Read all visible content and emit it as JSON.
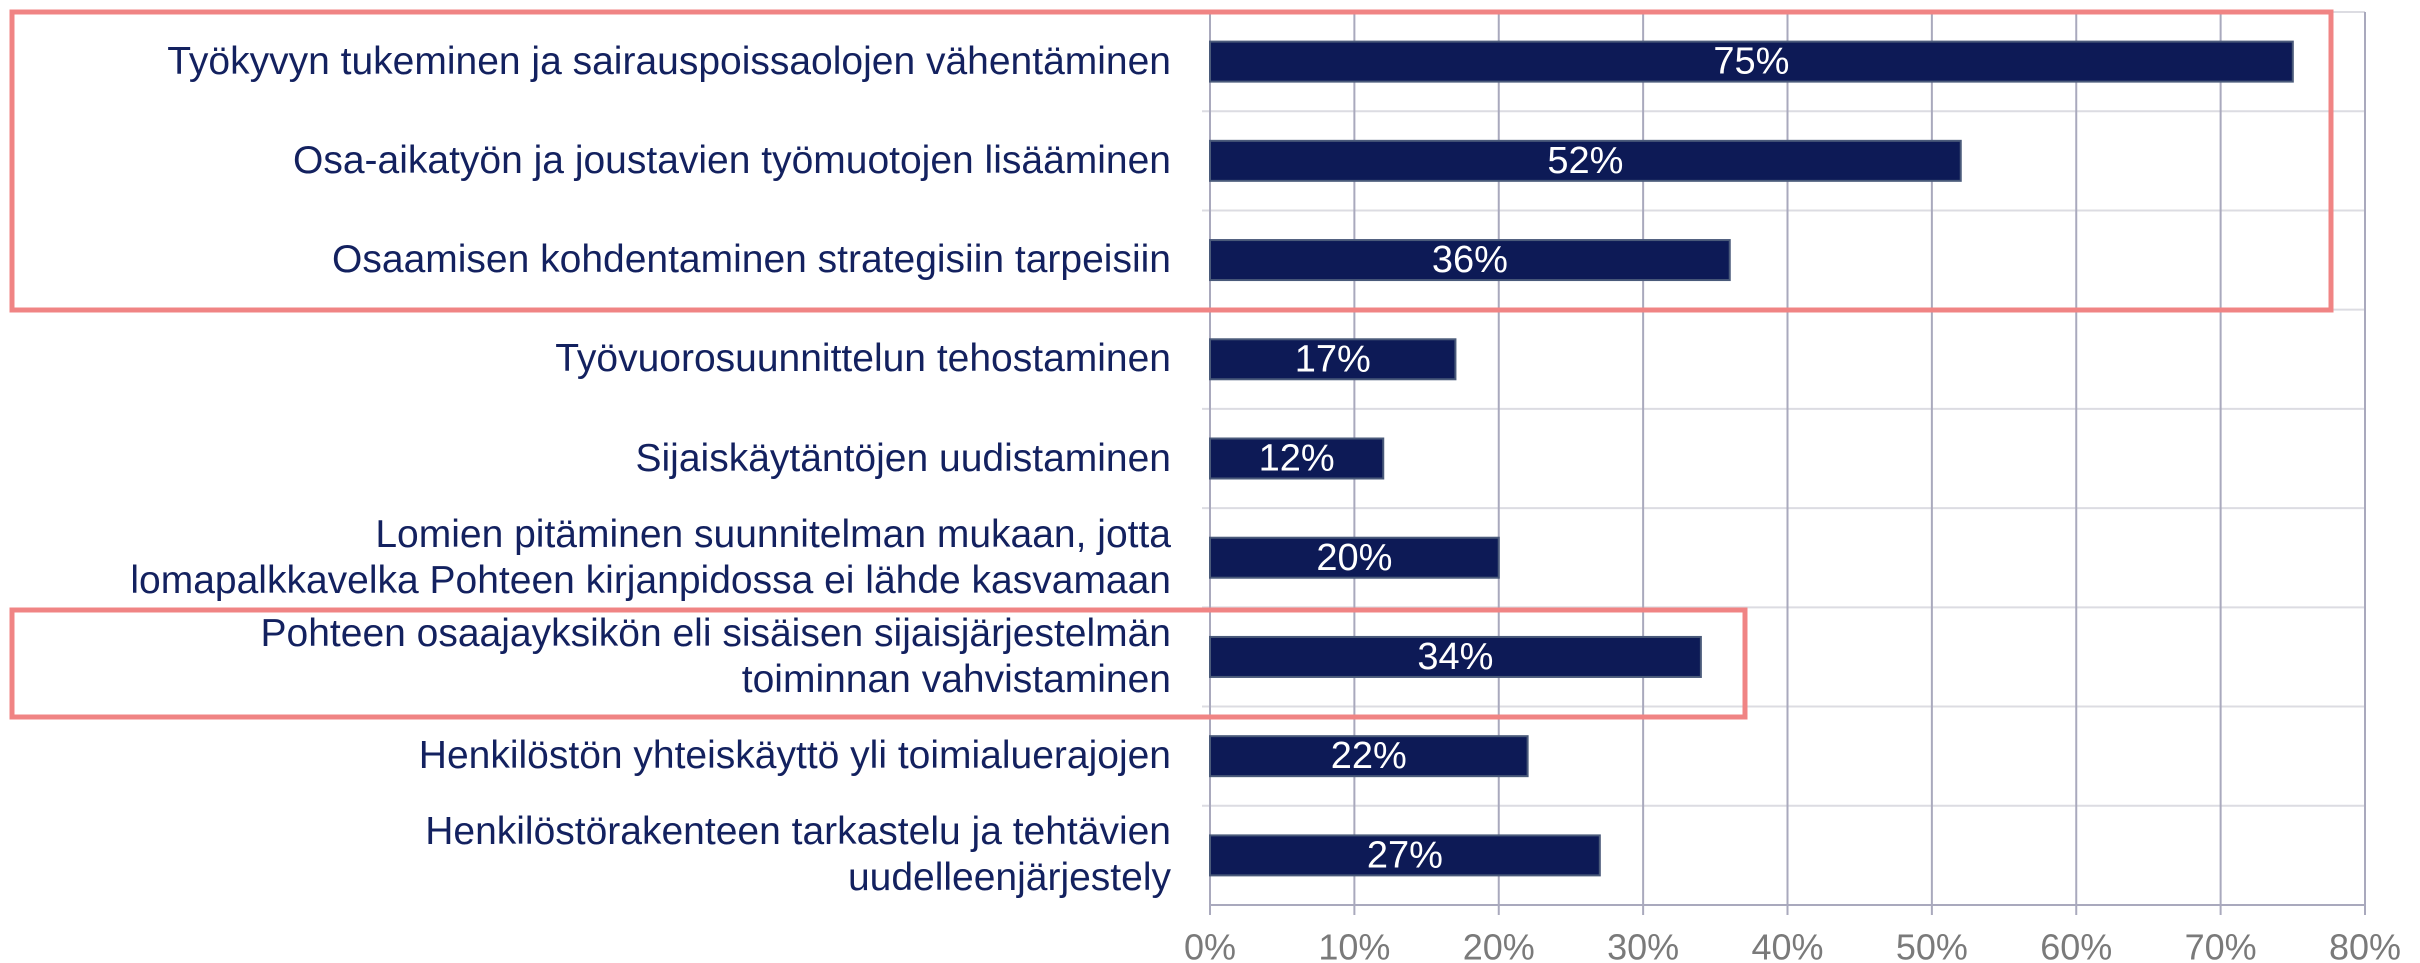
{
  "chart_data": {
    "type": "bar",
    "orientation": "horizontal",
    "categories": [
      "Työkyvyn tukeminen ja sairauspoissaolojen vähentäminen",
      "Osa-aikatyön ja joustavien työmuotojen lisääminen",
      "Osaamisen kohdentaminen strategisiin tarpeisiin",
      "Työvuorosuunnittelun tehostaminen",
      "Sijaiskäytäntöjen uudistaminen",
      "Lomien pitäminen suunnitelman mukaan, jotta\nlomapalkkavelka Pohteen kirjanpidossa ei lähde kasvamaan",
      "Pohteen osaajayksikön eli sisäisen sijaisjärjestelmän\ntoiminnan vahvistaminen",
      "Henkilöstön yhteiskäyttö yli toimialuerajojen",
      "Henkilöstörakenteen tarkastelu ja tehtävien\nuudelleenjärjestely"
    ],
    "values": [
      75,
      52,
      36,
      17,
      12,
      20,
      34,
      22,
      27
    ],
    "value_labels": [
      "75%",
      "52%",
      "36%",
      "17%",
      "12%",
      "20%",
      "34%",
      "22%",
      "27%"
    ],
    "color": "#0d1a56",
    "xlim": [
      0,
      80
    ],
    "xticks": [
      {
        "value": 0,
        "label": "0%"
      },
      {
        "value": 10,
        "label": "10%"
      },
      {
        "value": 20,
        "label": "20%"
      },
      {
        "value": 30,
        "label": "30%"
      },
      {
        "value": 40,
        "label": "40%"
      },
      {
        "value": 50,
        "label": "50%"
      },
      {
        "value": 60,
        "label": "60%"
      },
      {
        "value": 70,
        "label": "70%"
      },
      {
        "value": 80,
        "label": "80%"
      }
    ],
    "grid": true
  }
}
